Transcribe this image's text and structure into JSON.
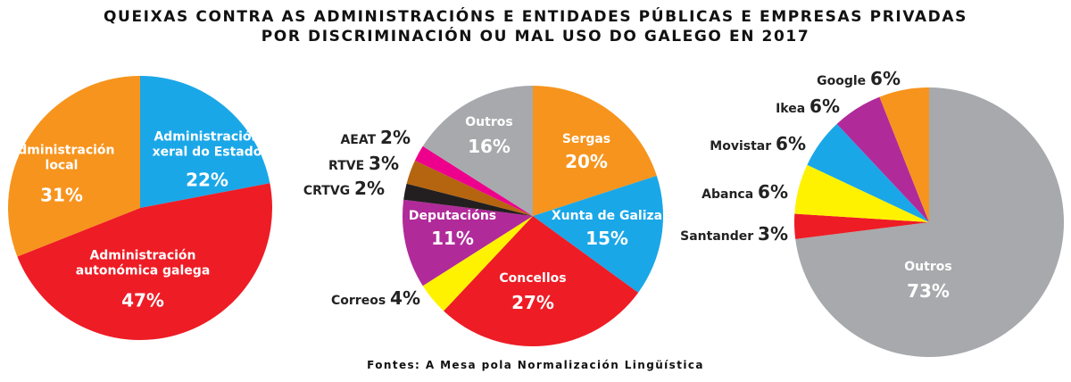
{
  "title": {
    "line1": "QUEIXAS CONTRA AS ADMINISTRACIÓNS E ENTIDADES PÚBLICAS E EMPRESAS PRIVADAS",
    "line2": "POR DISCRIMINACIÓN OU MAL USO DO GALEGO EN 2017"
  },
  "source": "Fontes: A Mesa pola Normalización Lingüística",
  "chart_data": [
    {
      "type": "pie",
      "slices": [
        {
          "label": [
            "Administración",
            "xeral do Estado"
          ],
          "pct_label": "22%",
          "value": 22,
          "color": "#1aa7e8"
        },
        {
          "label": [
            "Administración",
            "autonómica galega"
          ],
          "pct_label": "47%",
          "value": 47,
          "color": "#ee1c25"
        },
        {
          "label": [
            "Administración",
            "local"
          ],
          "pct_label": "31%",
          "value": 31,
          "color": "#f7941d"
        }
      ]
    },
    {
      "type": "pie",
      "slices": [
        {
          "label": [
            "Sergas"
          ],
          "pct_label": "20%",
          "value": 20,
          "color": "#f7941d"
        },
        {
          "label": [
            "Xunta de Galiza"
          ],
          "pct_label": "15%",
          "value": 15,
          "color": "#1aa7e8"
        },
        {
          "label": [
            "Concellos"
          ],
          "pct_label": "27%",
          "value": 27,
          "color": "#ee1c25"
        },
        {
          "label": [
            "Correos"
          ],
          "pct_label": "4%",
          "value": 4,
          "color": "#fff200"
        },
        {
          "label": [
            "Deputacións"
          ],
          "pct_label": "11%",
          "value": 11,
          "color": "#b12a9a"
        },
        {
          "label": [
            "CRTVG"
          ],
          "pct_label": "2%",
          "value": 2,
          "color": "#231f20"
        },
        {
          "label": [
            "RTVE"
          ],
          "pct_label": "3%",
          "value": 3,
          "color": "#b5650f"
        },
        {
          "label": [
            "AEAT"
          ],
          "pct_label": "2%",
          "value": 2,
          "color": "#ec008c"
        },
        {
          "label": [
            "Outros"
          ],
          "pct_label": "16%",
          "value": 16,
          "color": "#a7a9ac"
        }
      ]
    },
    {
      "type": "pie",
      "slices": [
        {
          "label": [
            "Outros"
          ],
          "pct_label": "73%",
          "value": 73,
          "color": "#a7a9ac"
        },
        {
          "label": [
            "Santander"
          ],
          "pct_label": "3%",
          "value": 3,
          "color": "#ee1c25"
        },
        {
          "label": [
            "Abanca"
          ],
          "pct_label": "6%",
          "value": 6,
          "color": "#fff200"
        },
        {
          "label": [
            "Movistar"
          ],
          "pct_label": "6%",
          "value": 6,
          "color": "#1aa7e8"
        },
        {
          "label": [
            "Ikea"
          ],
          "pct_label": "6%",
          "value": 6,
          "color": "#b12a9a"
        },
        {
          "label": [
            "Google"
          ],
          "pct_label": "6%",
          "value": 6,
          "color": "#f7941d"
        }
      ]
    }
  ]
}
